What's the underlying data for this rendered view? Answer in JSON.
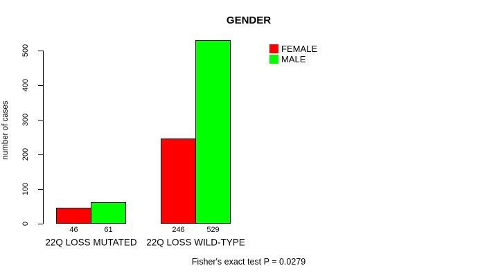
{
  "chart_data": {
    "type": "bar",
    "title": "GENDER",
    "xlabel": "",
    "ylabel": "number of cases",
    "categories": [
      "22Q LOSS MUTATED",
      "22Q LOSS WILD-TYPE"
    ],
    "series": [
      {
        "name": "FEMALE",
        "color": "#ff0000",
        "values": [
          46,
          246
        ]
      },
      {
        "name": "MALE",
        "color": "#00ff00",
        "values": [
          61,
          529
        ]
      }
    ],
    "ylim": [
      0,
      500
    ],
    "yticks": [
      0,
      100,
      200,
      300,
      400,
      500
    ],
    "grid": false,
    "legend_position": "top-right",
    "caption": "Fisher's exact test P = 0.0279"
  }
}
